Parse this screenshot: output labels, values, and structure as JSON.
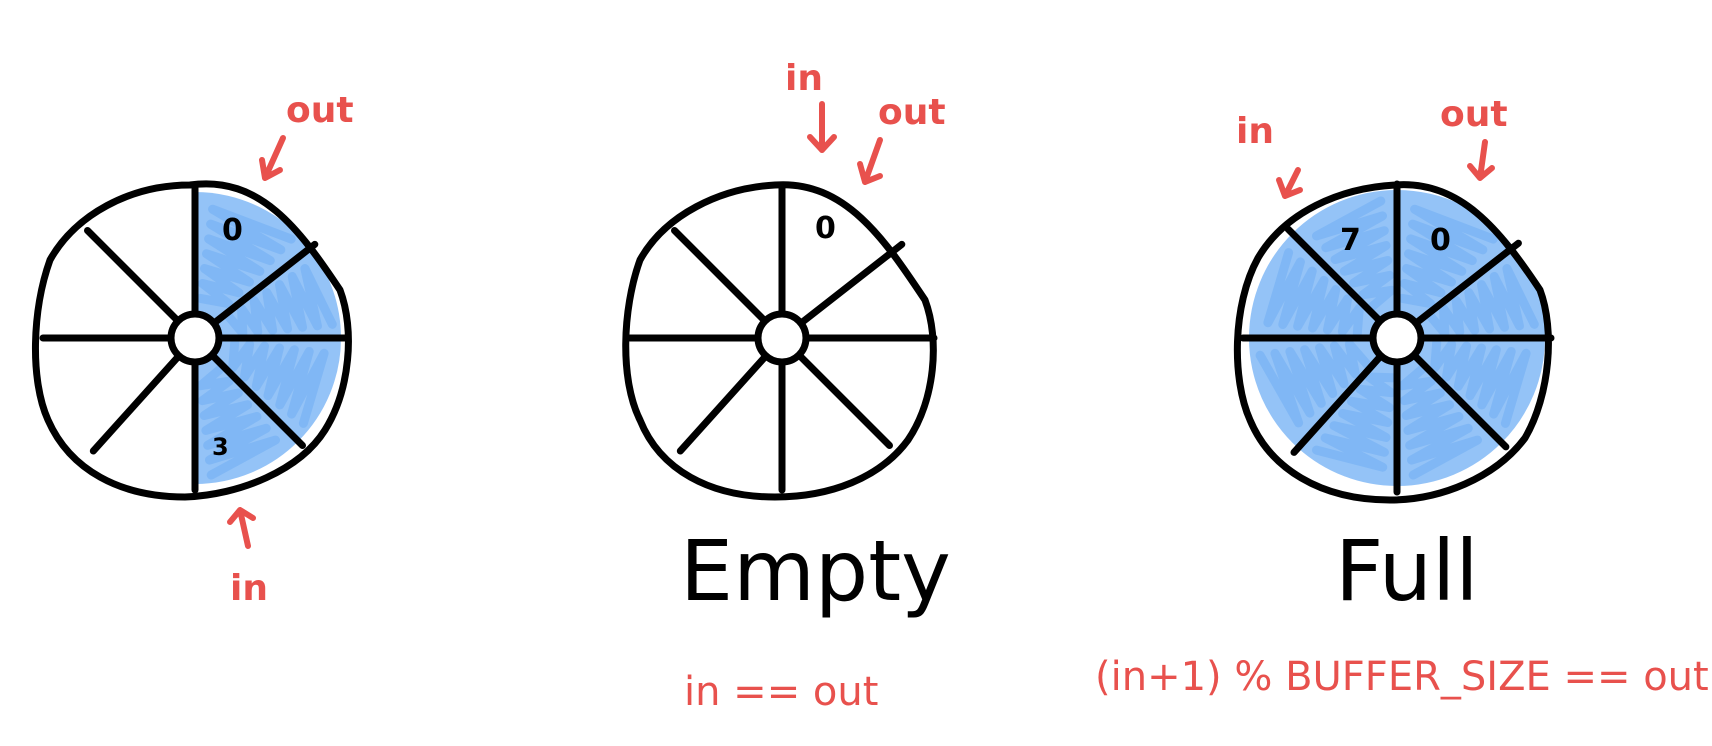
{
  "diagram": {
    "buffers": [
      {
        "id": "partial",
        "filled_segments": [
          0,
          1,
          2,
          3
        ],
        "index_labels": {
          "first": "0",
          "last": "3"
        },
        "in_label": "in",
        "out_label": "out",
        "caption": "",
        "condition": ""
      },
      {
        "id": "empty",
        "filled_segments": [],
        "index_labels": {
          "first": "0"
        },
        "in_label": "in",
        "out_label": "out",
        "caption": "Empty",
        "condition": "in == out"
      },
      {
        "id": "full",
        "filled_segments": [
          0,
          1,
          2,
          3,
          4,
          5,
          6,
          7
        ],
        "index_labels": {
          "first": "0",
          "last": "7"
        },
        "in_label": "in",
        "out_label": "out",
        "caption": "Full",
        "condition": "(in+1) % BUFFER_SIZE == out"
      }
    ],
    "segment_count": 8,
    "colors": {
      "stroke": "#000000",
      "fill": "#8ec0f7",
      "annotation": "#e8514d"
    }
  }
}
